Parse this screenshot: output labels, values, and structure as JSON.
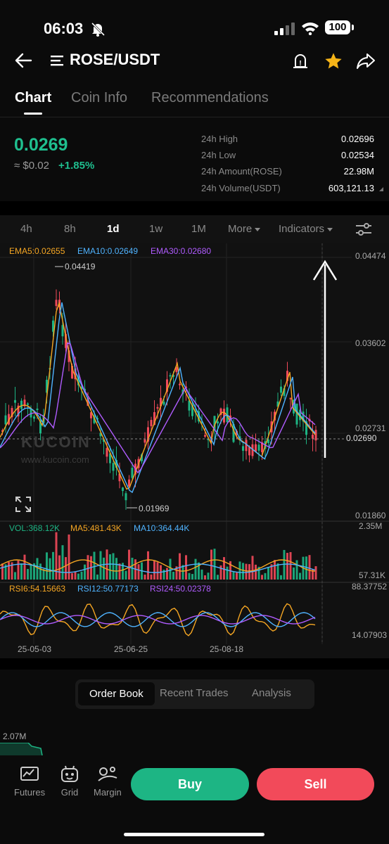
{
  "status": {
    "time": "06:03",
    "battery": "100"
  },
  "header": {
    "pair": "ROSE/USDT"
  },
  "tabs": [
    "Chart",
    "Coin Info",
    "Recommendations"
  ],
  "ticker": {
    "price": "0.0269",
    "fiat": "≈ $0.02",
    "change": "+1.85%",
    "stats": [
      {
        "label": "24h High",
        "value": "0.02696"
      },
      {
        "label": "24h Low",
        "value": "0.02534"
      },
      {
        "label": "24h Amount(ROSE)",
        "value": "22.98M"
      },
      {
        "label": "24h Volume(USDT)",
        "value": "603,121.13"
      }
    ]
  },
  "timeframes": [
    "4h",
    "8h",
    "1d",
    "1w",
    "1M",
    "More",
    "Indicators"
  ],
  "chart": {
    "ema": {
      "ema5": "EMA5:0.02655",
      "ema10": "EMA10:0.02649",
      "ema30": "EMA30:0.02680"
    },
    "price_axis": [
      "0.04474",
      "0.03602",
      "0.02731",
      "0.01860"
    ],
    "high_label": "0.04419",
    "low_label": "0.01969",
    "current_price": "0.02690",
    "watermark": "KUCOIN",
    "watermark_url": "www.kucoin.com",
    "vol": {
      "vol": "VOL:368.12K",
      "ma5": "MA5:481.43K",
      "ma10": "MA10:364.44K",
      "max": "2.35M",
      "min": "57.31K"
    },
    "rsi": {
      "rsi6": "RSI6:54.15663",
      "rsi12": "RSI12:50.77173",
      "rsi24": "RSI24:50.02378",
      "max": "88.37752",
      "min": "14.07903"
    },
    "dates": [
      "25-05-03",
      "25-06-25",
      "25-08-18"
    ],
    "colors": {
      "up": "#1db584",
      "down": "#f24a5a",
      "ema5": "#f5a623",
      "ema10": "#4fb3ff",
      "ema30": "#b05cff"
    }
  },
  "bottom_tabs": [
    "Order Book",
    "Recent Trades",
    "Analysis"
  ],
  "depth_label": "2.07M",
  "nav": {
    "futures": "Futures",
    "grid": "Grid",
    "margin": "Margin",
    "buy": "Buy",
    "sell": "Sell"
  }
}
